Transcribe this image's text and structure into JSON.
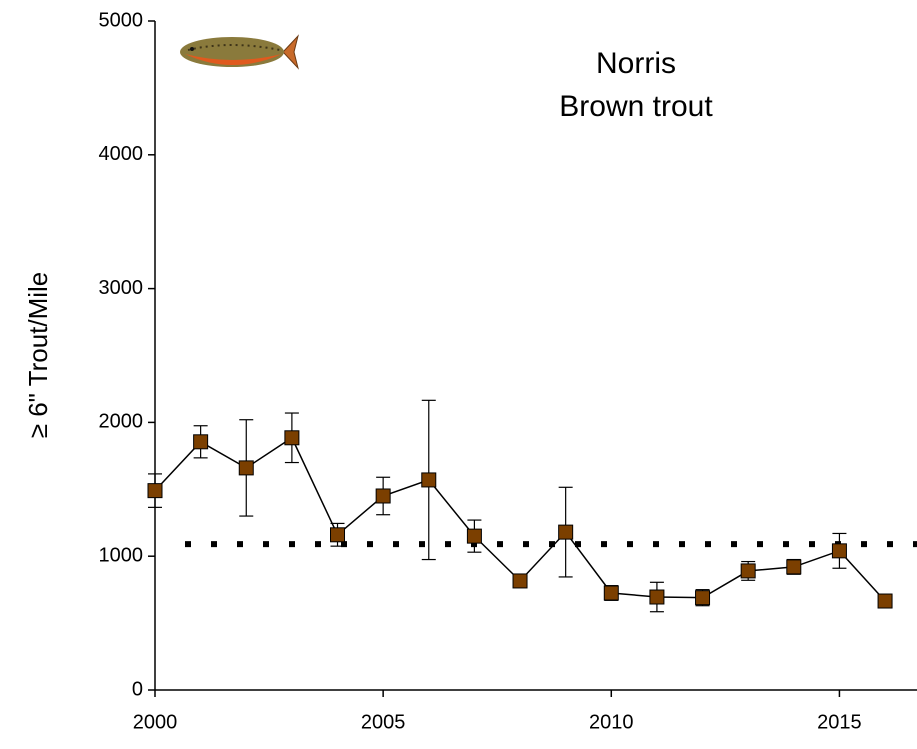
{
  "chart_data": {
    "type": "line",
    "title": "Norris",
    "subtitle": "Brown trout",
    "y_label": "≥ 6\" Trout/Mile",
    "x": [
      2000,
      2001,
      2002,
      2003,
      2004,
      2005,
      2006,
      2007,
      2008,
      2009,
      2010,
      2011,
      2012,
      2013,
      2014,
      2015,
      2016
    ],
    "series": [
      {
        "color": "#7b3f00",
        "values": [
          1490,
          1855,
          1660,
          1885,
          1160,
          1450,
          1570,
          1150,
          815,
          1180,
          725,
          695,
          690,
          890,
          920,
          1040,
          665
        ],
        "errors": [
          125,
          120,
          360,
          185,
          85,
          140,
          595,
          120,
          45,
          335,
          55,
          110,
          60,
          70,
          55,
          130,
          45
        ]
      }
    ],
    "reference_line": 1090,
    "xlim": [
      2000,
      2016.7
    ],
    "xticks": [
      2000,
      2005,
      2010,
      2015
    ],
    "ylim": [
      0,
      5000
    ],
    "yticks": [
      0,
      1000,
      2000,
      3000,
      4000,
      5000
    ]
  }
}
